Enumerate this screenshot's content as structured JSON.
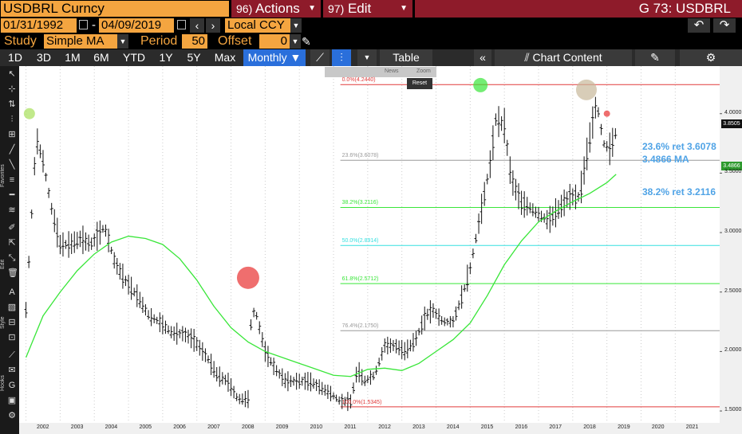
{
  "header": {
    "ticker": "USDBRL Curncy",
    "actions": {
      "num": "96)",
      "label": "Actions"
    },
    "edit": {
      "num": "97)",
      "label": "Edit"
    },
    "security": "G 73: USDBRL"
  },
  "dates": {
    "start": "01/31/1992",
    "end": "04/09/2019",
    "separator": "-"
  },
  "currency": "Local CCY",
  "study": {
    "label": "Study",
    "value": "Simple MA",
    "period_label": "Period",
    "period": "50",
    "offset_label": "Offset",
    "offset": "0"
  },
  "toolbar": {
    "ranges": [
      "1D",
      "3D",
      "1M",
      "6M",
      "YTD",
      "1Y",
      "5Y",
      "Max"
    ],
    "frequency": "Monthly",
    "table": "Table",
    "chart_content": "Chart Content"
  },
  "left_toolbar": {
    "favorites": "Favorites",
    "edit": "Edit",
    "style": "Style",
    "hooks": "Hooks"
  },
  "mini_toolbar": {
    "news": "News",
    "zoom": "Zoom",
    "reset": "Reset"
  },
  "annotations": {
    "ret236": "23.6% ret 3.6078",
    "ma": "3.4866 MA",
    "ret382": "38.2% ret 3.2116"
  },
  "price_tags": {
    "last": "3.8505",
    "ma": "3.4866"
  },
  "colors": {
    "accent": "#f4a540",
    "menu": "#8e1b2a",
    "active_tab": "#2a6fdb",
    "ma_line": "#39e639",
    "annotation": "#4fa3e6"
  },
  "chart_data": {
    "type": "line",
    "ylim": [
      1.4,
      4.4
    ],
    "xlim": [
      2001.8,
      2022.3
    ],
    "y_ticks": [
      "4.0000",
      "3.5000",
      "3.0000",
      "2.5000",
      "2.0000",
      "1.5000"
    ],
    "x_ticks": [
      "2002",
      "2003",
      "2004",
      "2005",
      "2006",
      "2007",
      "2008",
      "2009",
      "2010",
      "2011",
      "2012",
      "2013",
      "2014",
      "2015",
      "2016",
      "2017",
      "2018",
      "2019",
      "2020",
      "2021"
    ],
    "fib_levels": [
      {
        "label": "0.0%(4.2440)",
        "value": 4.244,
        "color": "#e03a3a"
      },
      {
        "label": "23.6%(3.6078)",
        "value": 3.6078,
        "color": "#999999"
      },
      {
        "label": "38.2%(3.2116)",
        "value": 3.2116,
        "color": "#39e639"
      },
      {
        "label": "50.0%(2.8914)",
        "value": 2.8914,
        "color": "#36e0e0"
      },
      {
        "label": "61.8%(2.5712)",
        "value": 2.5712,
        "color": "#39e639"
      },
      {
        "label": "76.4%(2.1750)",
        "value": 2.175,
        "color": "#999999"
      },
      {
        "label": "100.0%(1.5345)",
        "value": 1.5345,
        "color": "#e03a3a"
      }
    ],
    "series": [
      {
        "name": "USDBRL",
        "x": [
          2002.0,
          2002.3,
          2002.5,
          2002.75,
          2003.0,
          2003.3,
          2003.6,
          2003.9,
          2004.3,
          2004.6,
          2004.9,
          2005.3,
          2005.6,
          2005.9,
          2006.3,
          2006.6,
          2006.9,
          2007.3,
          2007.6,
          2007.9,
          2008.2,
          2008.5,
          2008.6,
          2008.75,
          2009.0,
          2009.3,
          2009.6,
          2009.9,
          2010.3,
          2010.6,
          2010.9,
          2011.2,
          2011.5,
          2011.7,
          2011.9,
          2012.2,
          2012.5,
          2012.8,
          2013.1,
          2013.4,
          2013.7,
          2013.9,
          2014.2,
          2014.5,
          2014.8,
          2015.0,
          2015.3,
          2015.6,
          2015.75,
          2016.0,
          2016.2,
          2016.5,
          2016.8,
          2017.0,
          2017.3,
          2017.6,
          2017.9,
          2018.2,
          2018.5,
          2018.7,
          2018.9,
          2019.1,
          2019.27
        ],
        "y": [
          2.35,
          3.8,
          3.6,
          3.2,
          2.9,
          2.9,
          2.95,
          2.9,
          3.05,
          2.75,
          2.6,
          2.45,
          2.3,
          2.25,
          2.15,
          2.15,
          2.1,
          1.95,
          1.8,
          1.75,
          1.6,
          1.6,
          2.35,
          2.3,
          2.0,
          1.85,
          1.75,
          1.75,
          1.75,
          1.7,
          1.65,
          1.58,
          1.58,
          1.85,
          1.75,
          1.8,
          2.05,
          2.05,
          2.0,
          2.1,
          2.3,
          2.35,
          2.25,
          2.25,
          2.5,
          2.7,
          3.15,
          3.6,
          3.95,
          3.9,
          3.45,
          3.25,
          3.2,
          3.15,
          3.1,
          3.2,
          3.3,
          3.3,
          3.8,
          4.1,
          3.75,
          3.7,
          3.85
        ]
      },
      {
        "name": "MA",
        "x": [
          2002.0,
          2002.5,
          2003.0,
          2003.5,
          2004.0,
          2004.5,
          2005.0,
          2005.5,
          2006.0,
          2006.5,
          2007.0,
          2007.5,
          2008.0,
          2008.5,
          2009.0,
          2009.5,
          2010.0,
          2010.5,
          2011.0,
          2011.5,
          2012.0,
          2012.5,
          2013.0,
          2013.5,
          2014.0,
          2014.5,
          2015.0,
          2015.5,
          2016.0,
          2016.5,
          2017.0,
          2017.5,
          2018.0,
          2018.5,
          2019.0,
          2019.27
        ],
        "y": [
          1.95,
          2.3,
          2.5,
          2.68,
          2.82,
          2.92,
          2.97,
          2.95,
          2.9,
          2.78,
          2.6,
          2.38,
          2.2,
          2.08,
          2.0,
          1.95,
          1.9,
          1.85,
          1.8,
          1.79,
          1.85,
          1.86,
          1.84,
          1.9,
          2.0,
          2.1,
          2.24,
          2.47,
          2.73,
          2.93,
          3.09,
          3.18,
          3.26,
          3.33,
          3.42,
          3.49
        ]
      }
    ],
    "markers": [
      {
        "x": 2002.1,
        "y": 4.0,
        "color": "#a6e05a"
      },
      {
        "x": 2008.5,
        "y": 2.62,
        "color": "#e83030"
      },
      {
        "x": 2015.3,
        "y": 4.24,
        "color": "#39e639"
      },
      {
        "x": 2018.4,
        "y": 4.2,
        "color": "#c8b89a"
      },
      {
        "x": 2019.0,
        "y": 4.0,
        "color": "#e83030"
      }
    ]
  }
}
